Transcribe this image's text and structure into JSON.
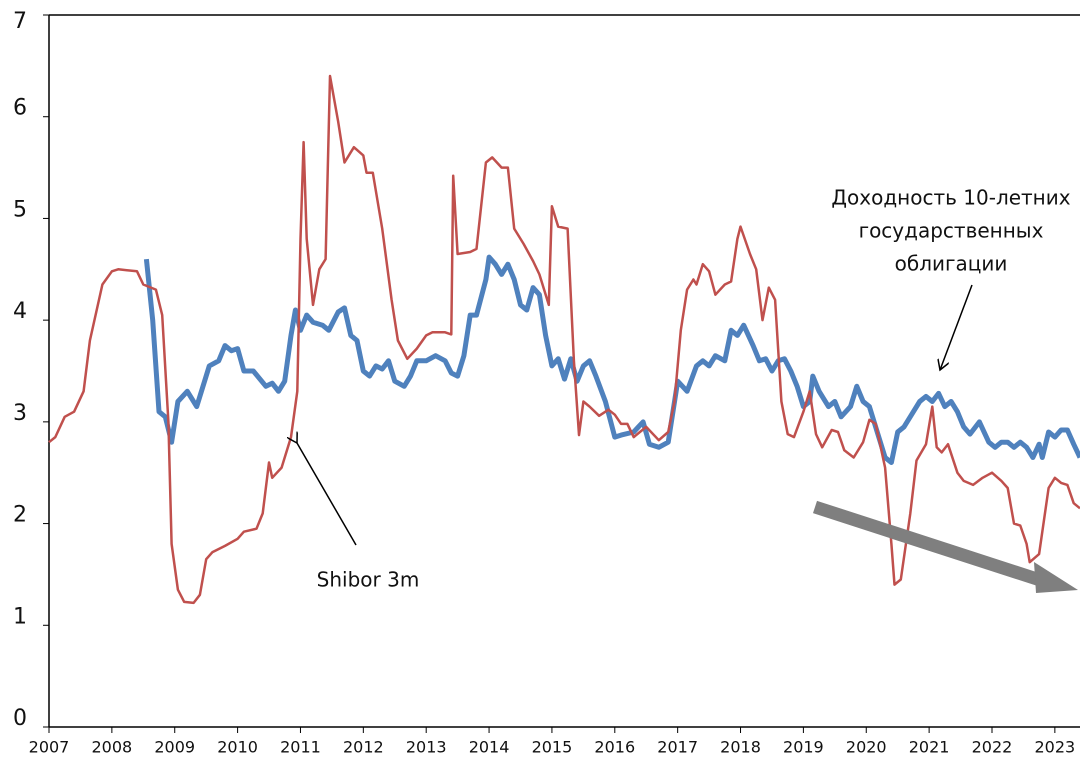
{
  "chart_data": {
    "type": "line",
    "xlim": [
      2007,
      2023.4
    ],
    "xticks": [
      2007,
      2008,
      2009,
      2010,
      2011,
      2012,
      2013,
      2014,
      2015,
      2016,
      2017,
      2018,
      2019,
      2020,
      2021,
      2022,
      2023
    ],
    "ylim": [
      0,
      7
    ],
    "yticks": [
      0,
      1,
      2,
      3,
      4,
      5,
      6,
      7
    ],
    "annotations": [
      "Shibor 3m",
      "Доходность 10-летних",
      "государственных",
      "облигации"
    ],
    "series": [
      {
        "color": "#4f81bd",
        "x": [
          2008.55,
          2008.65,
          2008.75,
          2008.85,
          2008.95,
          2009.05,
          2009.2,
          2009.35,
          2009.45,
          2009.55,
          2009.7,
          2009.8,
          2009.9,
          2010.0,
          2010.1,
          2010.25,
          2010.45,
          2010.55,
          2010.65,
          2010.75,
          2010.85,
          2010.92,
          2011.0,
          2011.1,
          2011.2,
          2011.35,
          2011.45,
          2011.6,
          2011.7,
          2011.8,
          2011.9,
          2012.0,
          2012.1,
          2012.2,
          2012.3,
          2012.4,
          2012.5,
          2012.65,
          2012.75,
          2012.85,
          2013.0,
          2013.15,
          2013.3,
          2013.4,
          2013.5,
          2013.6,
          2013.7,
          2013.8,
          2013.95,
          2014.0,
          2014.1,
          2014.2,
          2014.3,
          2014.4,
          2014.5,
          2014.6,
          2014.7,
          2014.8,
          2014.9,
          2015.0,
          2015.1,
          2015.2,
          2015.3,
          2015.4,
          2015.5,
          2015.6,
          2015.7,
          2015.85,
          2016.0,
          2016.1,
          2016.3,
          2016.45,
          2016.55,
          2016.7,
          2016.85,
          2017.0,
          2017.15,
          2017.3,
          2017.4,
          2017.5,
          2017.6,
          2017.75,
          2017.85,
          2017.95,
          2018.05,
          2018.2,
          2018.3,
          2018.4,
          2018.5,
          2018.6,
          2018.7,
          2018.8,
          2018.9,
          2019.0,
          2019.1,
          2019.15,
          2019.25,
          2019.4,
          2019.5,
          2019.6,
          2019.75,
          2019.85,
          2019.95,
          2020.05,
          2020.2,
          2020.3,
          2020.4,
          2020.5,
          2020.6,
          2020.75,
          2020.85,
          2020.95,
          2021.05,
          2021.15,
          2021.25,
          2021.35,
          2021.45,
          2021.55,
          2021.65,
          2021.8,
          2021.95,
          2022.05,
          2022.15,
          2022.25,
          2022.35,
          2022.45,
          2022.55,
          2022.65,
          2022.75,
          2022.8,
          2022.9,
          2023.0,
          2023.1,
          2023.2,
          2023.3,
          2023.4
        ],
        "values": [
          4.6,
          4.0,
          3.1,
          3.05,
          2.8,
          3.2,
          3.3,
          3.15,
          3.35,
          3.55,
          3.6,
          3.75,
          3.7,
          3.72,
          3.5,
          3.5,
          3.35,
          3.38,
          3.3,
          3.4,
          3.85,
          4.1,
          3.9,
          4.05,
          3.98,
          3.95,
          3.9,
          4.08,
          4.12,
          3.85,
          3.8,
          3.5,
          3.45,
          3.55,
          3.52,
          3.6,
          3.4,
          3.35,
          3.45,
          3.6,
          3.6,
          3.65,
          3.6,
          3.48,
          3.45,
          3.65,
          4.05,
          4.05,
          4.4,
          4.62,
          4.55,
          4.45,
          4.55,
          4.4,
          4.15,
          4.1,
          4.32,
          4.25,
          3.85,
          3.55,
          3.62,
          3.42,
          3.62,
          3.4,
          3.55,
          3.6,
          3.45,
          3.2,
          2.85,
          2.87,
          2.9,
          3.0,
          2.78,
          2.75,
          2.8,
          3.4,
          3.3,
          3.55,
          3.6,
          3.55,
          3.65,
          3.6,
          3.9,
          3.85,
          3.95,
          3.75,
          3.6,
          3.62,
          3.5,
          3.6,
          3.62,
          3.5,
          3.35,
          3.15,
          3.2,
          3.45,
          3.3,
          3.15,
          3.2,
          3.05,
          3.15,
          3.35,
          3.2,
          3.15,
          2.85,
          2.65,
          2.6,
          2.9,
          2.95,
          3.1,
          3.2,
          3.25,
          3.2,
          3.28,
          3.15,
          3.2,
          3.1,
          2.95,
          2.88,
          3.0,
          2.8,
          2.75,
          2.8,
          2.8,
          2.75,
          2.8,
          2.75,
          2.65,
          2.78,
          2.65,
          2.9,
          2.85,
          2.92,
          2.92,
          2.78,
          2.65
        ]
      },
      {
        "color": "#c0504d",
        "x": [
          2007.0,
          2007.1,
          2007.25,
          2007.4,
          2007.55,
          2007.65,
          2007.85,
          2008.0,
          2008.1,
          2008.4,
          2008.5,
          2008.7,
          2008.8,
          2008.9,
          2008.95,
          2009.05,
          2009.15,
          2009.3,
          2009.4,
          2009.5,
          2009.6,
          2009.8,
          2010.0,
          2010.1,
          2010.3,
          2010.4,
          2010.5,
          2010.55,
          2010.7,
          2010.85,
          2010.95,
          2011.0,
          2011.05,
          2011.1,
          2011.2,
          2011.3,
          2011.4,
          2011.47,
          2011.6,
          2011.7,
          2011.85,
          2012.0,
          2012.05,
          2012.15,
          2012.3,
          2012.45,
          2012.55,
          2012.7,
          2012.85,
          2013.0,
          2013.1,
          2013.3,
          2013.4,
          2013.43,
          2013.5,
          2013.7,
          2013.8,
          2013.95,
          2014.05,
          2014.2,
          2014.3,
          2014.4,
          2014.55,
          2014.7,
          2014.8,
          2014.95,
          2015.0,
          2015.1,
          2015.25,
          2015.35,
          2015.43,
          2015.5,
          2015.6,
          2015.75,
          2015.9,
          2016.0,
          2016.1,
          2016.2,
          2016.3,
          2016.5,
          2016.7,
          2016.85,
          2016.95,
          2017.05,
          2017.15,
          2017.25,
          2017.3,
          2017.4,
          2017.5,
          2017.6,
          2017.75,
          2017.85,
          2017.95,
          2018.0,
          2018.15,
          2018.25,
          2018.35,
          2018.45,
          2018.55,
          2018.65,
          2018.75,
          2018.85,
          2019.0,
          2019.1,
          2019.2,
          2019.3,
          2019.45,
          2019.55,
          2019.65,
          2019.8,
          2019.95,
          2020.05,
          2020.15,
          2020.3,
          2020.4,
          2020.45,
          2020.55,
          2020.7,
          2020.8,
          2020.95,
          2021.05,
          2021.12,
          2021.2,
          2021.3,
          2021.45,
          2021.55,
          2021.7,
          2021.85,
          2022.0,
          2022.15,
          2022.25,
          2022.35,
          2022.45,
          2022.55,
          2022.6,
          2022.75,
          2022.9,
          2023.0,
          2023.1,
          2023.2,
          2023.3,
          2023.4
        ],
        "values": [
          2.8,
          2.85,
          3.05,
          3.1,
          3.3,
          3.8,
          4.35,
          4.48,
          4.5,
          4.48,
          4.35,
          4.3,
          4.05,
          3.0,
          1.8,
          1.35,
          1.23,
          1.22,
          1.3,
          1.65,
          1.72,
          1.78,
          1.85,
          1.92,
          1.95,
          2.1,
          2.6,
          2.45,
          2.55,
          2.85,
          3.3,
          4.8,
          5.75,
          4.8,
          4.15,
          4.5,
          4.6,
          6.4,
          5.95,
          5.55,
          5.7,
          5.62,
          5.45,
          5.45,
          4.9,
          4.2,
          3.8,
          3.62,
          3.72,
          3.85,
          3.88,
          3.88,
          3.86,
          5.42,
          4.65,
          4.67,
          4.7,
          5.55,
          5.6,
          5.5,
          5.5,
          4.9,
          4.75,
          4.58,
          4.45,
          4.15,
          5.12,
          4.92,
          4.9,
          3.6,
          2.87,
          3.2,
          3.15,
          3.06,
          3.12,
          3.07,
          2.98,
          2.98,
          2.85,
          2.95,
          2.82,
          2.9,
          3.2,
          3.9,
          4.3,
          4.4,
          4.35,
          4.55,
          4.48,
          4.25,
          4.35,
          4.38,
          4.8,
          4.92,
          4.65,
          4.5,
          4.0,
          4.32,
          4.2,
          3.2,
          2.88,
          2.85,
          3.1,
          3.3,
          2.88,
          2.75,
          2.92,
          2.9,
          2.72,
          2.65,
          2.8,
          3.02,
          2.98,
          2.55,
          1.8,
          1.4,
          1.45,
          2.1,
          2.62,
          2.78,
          3.15,
          2.75,
          2.7,
          2.78,
          2.5,
          2.42,
          2.38,
          2.45,
          2.5,
          2.42,
          2.35,
          2.0,
          1.98,
          1.8,
          1.62,
          1.7,
          2.35,
          2.45,
          2.4,
          2.38,
          2.2,
          2.15
        ]
      }
    ]
  }
}
